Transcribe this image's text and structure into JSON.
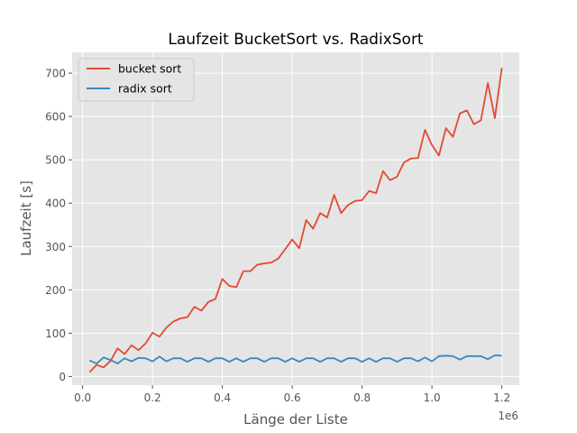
{
  "chart_data": {
    "type": "line",
    "title": "Laufzeit BucketSort vs. RadixSort",
    "xlabel": "Länge der Liste",
    "ylabel": "Laufzeit [s]",
    "x_offset_label": "1e6",
    "x_scale": 1000000,
    "xlim": [
      -0.03,
      1.25
    ],
    "ylim": [
      -20,
      748
    ],
    "x_ticks": [
      0.0,
      0.2,
      0.4,
      0.6,
      0.8,
      1.0,
      1.2
    ],
    "x_tick_labels": [
      "0.0",
      "0.2",
      "0.4",
      "0.6",
      "0.8",
      "1.0",
      "1.2"
    ],
    "y_ticks": [
      0,
      100,
      200,
      300,
      400,
      500,
      600,
      700
    ],
    "y_tick_labels": [
      "0",
      "100",
      "200",
      "300",
      "400",
      "500",
      "600",
      "700"
    ],
    "grid": true,
    "legend_position": "top-left",
    "x": [
      20000,
      40000,
      60000,
      80000,
      100000,
      120000,
      140000,
      160000,
      180000,
      200000,
      220000,
      240000,
      260000,
      280000,
      300000,
      320000,
      340000,
      360000,
      380000,
      400000,
      420000,
      440000,
      460000,
      480000,
      500000,
      520000,
      540000,
      560000,
      580000,
      600000,
      620000,
      640000,
      660000,
      680000,
      700000,
      720000,
      740000,
      760000,
      780000,
      800000,
      820000,
      840000,
      860000,
      880000,
      900000,
      920000,
      940000,
      960000,
      980000,
      1000000,
      1020000,
      1040000,
      1060000,
      1080000,
      1100000,
      1120000,
      1140000,
      1160000,
      1180000,
      1200000
    ],
    "series": [
      {
        "name": "bucket sort",
        "color": "#e24a33",
        "values": [
          10,
          27,
          21,
          36,
          65,
          52,
          72,
          61,
          76,
          101,
          92,
          113,
          127,
          134,
          137,
          161,
          152,
          172,
          179,
          225,
          209,
          206,
          243,
          243,
          258,
          261,
          263,
          272,
          294,
          316,
          296,
          361,
          341,
          377,
          367,
          419,
          377,
          396,
          405,
          407,
          428,
          423,
          474,
          453,
          461,
          494,
          503,
          504,
          569,
          534,
          510,
          573,
          553,
          607,
          614,
          582,
          591,
          677,
          596,
          712
        ]
      },
      {
        "name": "radix sort",
        "color": "#348abd",
        "values": [
          37,
          30,
          44,
          38,
          30,
          42,
          35,
          43,
          42,
          35,
          46,
          35,
          42,
          42,
          34,
          42,
          42,
          34,
          42,
          42,
          34,
          42,
          34,
          42,
          42,
          34,
          42,
          42,
          34,
          42,
          34,
          42,
          42,
          34,
          42,
          42,
          34,
          42,
          42,
          34,
          42,
          34,
          42,
          42,
          34,
          42,
          42,
          35,
          44,
          35,
          47,
          48,
          47,
          39,
          47,
          47,
          47,
          40,
          49,
          48
        ]
      }
    ]
  },
  "colors": {
    "plot_background": "#e5e5e5",
    "grid": "#ffffff",
    "bucket_sort": "#e24a33",
    "radix_sort": "#348abd"
  }
}
